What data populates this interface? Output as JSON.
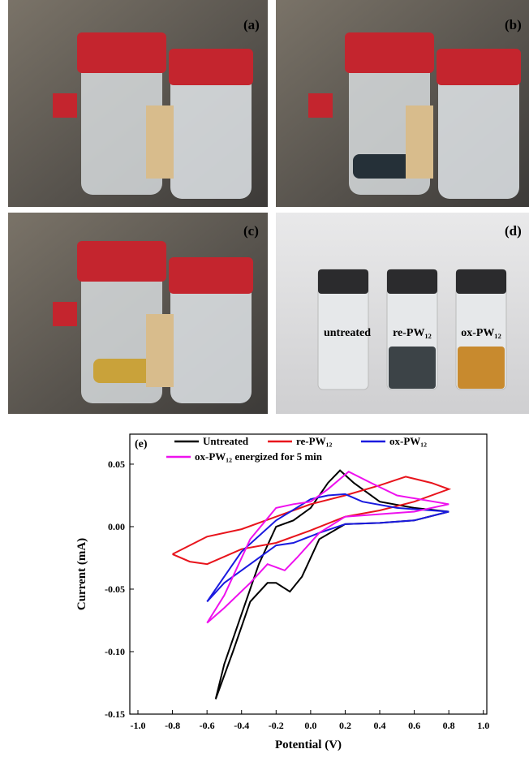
{
  "panels": [
    {
      "label": "(a)"
    },
    {
      "label": "(b)"
    },
    {
      "label": "(c)"
    },
    {
      "label": "(d)"
    }
  ],
  "vial_labels": [
    "untreated",
    "re-PW₁₂",
    "ox-PW₁₂"
  ],
  "chart_data": {
    "type": "line",
    "panel_label": "(e)",
    "x_label": "Potential (V)",
    "y_label": "Current (mA)",
    "xlim": [
      -1.047,
      1.02
    ],
    "ylim": [
      -0.15,
      0.074
    ],
    "xticks": [
      {
        "value": -1.0,
        "label": "-1.0"
      },
      -0.8,
      -0.6,
      -0.4,
      -0.2,
      {
        "value": 0.0,
        "label": "0.0"
      },
      0.2,
      0.4,
      0.6,
      0.8,
      {
        "value": 1.0,
        "label": "1.0"
      }
    ],
    "yticks": [
      -0.15,
      {
        "value": -0.1,
        "label": "-0.10"
      },
      -0.05,
      {
        "value": 0.0,
        "label": "0.00"
      },
      0.05
    ],
    "series": [
      {
        "name": "Untreated",
        "color": "#000000",
        "x": [
          -0.55,
          -0.5,
          -0.4,
          -0.3,
          -0.2,
          -0.1,
          0,
          0.1,
          0.17,
          0.25,
          0.4,
          0.6,
          0.8,
          0.6,
          0.4,
          0.2,
          0.05,
          -0.05,
          -0.12,
          -0.2,
          -0.25,
          -0.35,
          -0.45,
          -0.55
        ],
        "values": [
          -0.138,
          -0.11,
          -0.07,
          -0.03,
          0.0,
          0.005,
          0.015,
          0.035,
          0.045,
          0.035,
          0.02,
          0.015,
          0.012,
          0.005,
          0.003,
          0.002,
          -0.01,
          -0.04,
          -0.052,
          -0.045,
          -0.045,
          -0.06,
          -0.1,
          -0.138
        ]
      },
      {
        "name": "re-PW₁₂",
        "color": "#e8141c",
        "x": [
          -0.8,
          -0.6,
          -0.4,
          -0.2,
          0,
          0.2,
          0.4,
          0.55,
          0.7,
          0.8,
          0.6,
          0.4,
          0.2,
          0,
          -0.2,
          -0.4,
          -0.6,
          -0.7,
          -0.8
        ],
        "values": [
          -0.022,
          -0.008,
          -0.002,
          0.008,
          0.018,
          0.025,
          0.033,
          0.04,
          0.035,
          0.03,
          0.02,
          0.013,
          0.008,
          -0.003,
          -0.013,
          -0.018,
          -0.03,
          -0.028,
          -0.022
        ]
      },
      {
        "name": "ox-PW₁₂",
        "color": "#1a1adf",
        "x": [
          -0.6,
          -0.5,
          -0.4,
          -0.2,
          0,
          0.1,
          0.2,
          0.3,
          0.5,
          0.8,
          0.6,
          0.4,
          0.2,
          0.05,
          -0.1,
          -0.2,
          -0.35,
          -0.5,
          -0.6
        ],
        "values": [
          -0.06,
          -0.04,
          -0.02,
          0.005,
          0.022,
          0.025,
          0.026,
          0.02,
          0.015,
          0.012,
          0.005,
          0.003,
          0.002,
          -0.005,
          -0.013,
          -0.015,
          -0.03,
          -0.045,
          -0.06
        ]
      },
      {
        "name": "ox-PW₁₂ energized for 5 min",
        "color": "#ee11ee",
        "x": [
          -0.6,
          -0.5,
          -0.35,
          -0.2,
          -0.1,
          0,
          0.1,
          0.22,
          0.35,
          0.5,
          0.8,
          0.6,
          0.4,
          0.2,
          0.05,
          -0.08,
          -0.15,
          -0.25,
          -0.35,
          -0.5,
          -0.6
        ],
        "values": [
          -0.077,
          -0.055,
          -0.01,
          0.015,
          0.018,
          0.02,
          0.03,
          0.044,
          0.035,
          0.025,
          0.018,
          0.012,
          0.01,
          0.008,
          -0.005,
          -0.025,
          -0.035,
          -0.03,
          -0.045,
          -0.065,
          -0.077
        ]
      }
    ]
  }
}
